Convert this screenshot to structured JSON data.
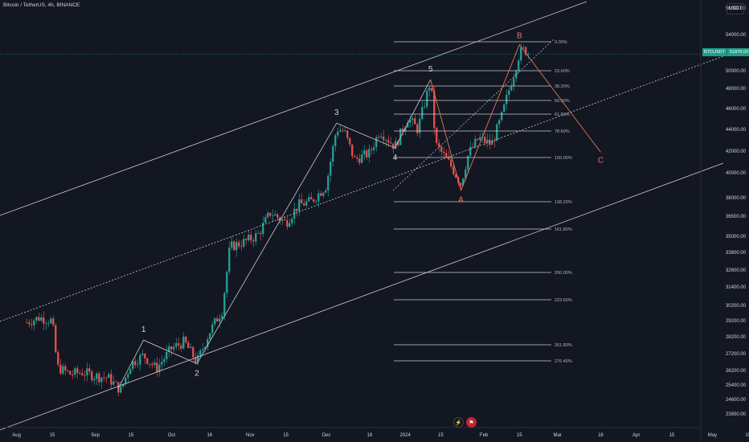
{
  "header": {
    "symbol_title": "Bitcoin / TetherUS, 4h, BINANCE",
    "currency": "USDT"
  },
  "price_tag": {
    "symbol": "BTCUSDT",
    "value": "51878.00"
  },
  "bottom_icons": {
    "lightning": "lightning-icon",
    "flag": "flag-icon"
  },
  "colors": {
    "bg": "#131722",
    "up": "#26a69a",
    "down": "#ef5350",
    "line": "#c9cbd1",
    "abc": "#e8735a",
    "fib": "#c9cbd1"
  },
  "chart_data": {
    "type": "candlestick",
    "price_scale": [
      "56000.00",
      "54000.00",
      "52000.00",
      "50000.00",
      "48000.00",
      "46000.00",
      "44000.00",
      "42000.00",
      "40000.00",
      "38000.00",
      "36500.00",
      "35000.00",
      "33800.00",
      "32600.00",
      "31400.00",
      "30200.00",
      "29200.00",
      "28200.00",
      "27200.00",
      "26200.00",
      "25400.00",
      "24600.00",
      "23850.00"
    ],
    "time_labels": [
      "Aug",
      "15",
      "Sep",
      "15",
      "Oct",
      "16",
      "Nov",
      "15",
      "Dec",
      "18",
      "2024",
      "15",
      "Feb",
      "15",
      "Mar",
      "18",
      "Apr",
      "15",
      "May",
      "15"
    ],
    "last_price": 51878,
    "closes": [
      [
        "2023-08-05",
        29100
      ],
      [
        "2023-08-10",
        29400
      ],
      [
        "2023-08-15",
        29200
      ],
      [
        "2023-08-17",
        26400
      ],
      [
        "2023-08-22",
        26000
      ],
      [
        "2023-08-27",
        26100
      ],
      [
        "2023-09-01",
        25900
      ],
      [
        "2023-09-06",
        25800
      ],
      [
        "2023-09-11",
        25100
      ],
      [
        "2023-09-15",
        26600
      ],
      [
        "2023-09-20",
        27100
      ],
      [
        "2023-09-25",
        26300
      ],
      [
        "2023-10-01",
        27500
      ],
      [
        "2023-10-06",
        27900
      ],
      [
        "2023-10-11",
        26700
      ],
      [
        "2023-10-16",
        28500
      ],
      [
        "2023-10-21",
        29900
      ],
      [
        "2023-10-24",
        34200
      ],
      [
        "2023-10-30",
        34600
      ],
      [
        "2023-11-04",
        35100
      ],
      [
        "2023-11-09",
        36800
      ],
      [
        "2023-11-15",
        36000
      ],
      [
        "2023-11-20",
        37400
      ],
      [
        "2023-11-25",
        37700
      ],
      [
        "2023-12-01",
        39000
      ],
      [
        "2023-12-05",
        44100
      ],
      [
        "2023-12-08",
        43800
      ],
      [
        "2023-12-12",
        41200
      ],
      [
        "2023-12-18",
        41800
      ],
      [
        "2023-12-22",
        43900
      ],
      [
        "2023-12-28",
        42400
      ],
      [
        "2024-01-02",
        45100
      ],
      [
        "2024-01-06",
        44000
      ],
      [
        "2024-01-11",
        48800
      ],
      [
        "2024-01-13",
        42600
      ],
      [
        "2024-01-18",
        41000
      ],
      [
        "2024-01-23",
        39100
      ],
      [
        "2024-01-26",
        41800
      ],
      [
        "2024-01-30",
        43200
      ],
      [
        "2024-02-04",
        42600
      ],
      [
        "2024-02-08",
        45200
      ],
      [
        "2024-02-13",
        49800
      ],
      [
        "2024-02-15",
        52000
      ],
      [
        "2024-02-17",
        52400
      ],
      [
        "2024-02-19",
        51878
      ]
    ],
    "waves": [
      {
        "label": "1",
        "date": "2023-09-20",
        "price": 28000
      },
      {
        "label": "2",
        "date": "2023-10-11",
        "price": 26600
      },
      {
        "label": "3",
        "date": "2023-12-05",
        "price": 44600
      },
      {
        "label": "4",
        "date": "2023-12-28",
        "price": 42300
      },
      {
        "label": "5",
        "date": "2024-01-11",
        "price": 49000
      },
      {
        "label": "A",
        "date": "2024-01-23",
        "price": 38600
      },
      {
        "label": "B",
        "date": "2024-02-15",
        "price": 52900
      },
      {
        "label": "C",
        "date": "2024-03-18",
        "price": 41900
      }
    ],
    "fibonacci_levels": [
      "0.00%",
      "23.60%",
      "38.20%",
      "50.00%",
      "61.80%",
      "78.60%",
      "100.00%",
      "138.20%",
      "161.80%",
      "200.00%",
      "223.60%",
      "261.80%",
      "276.40%"
    ]
  }
}
